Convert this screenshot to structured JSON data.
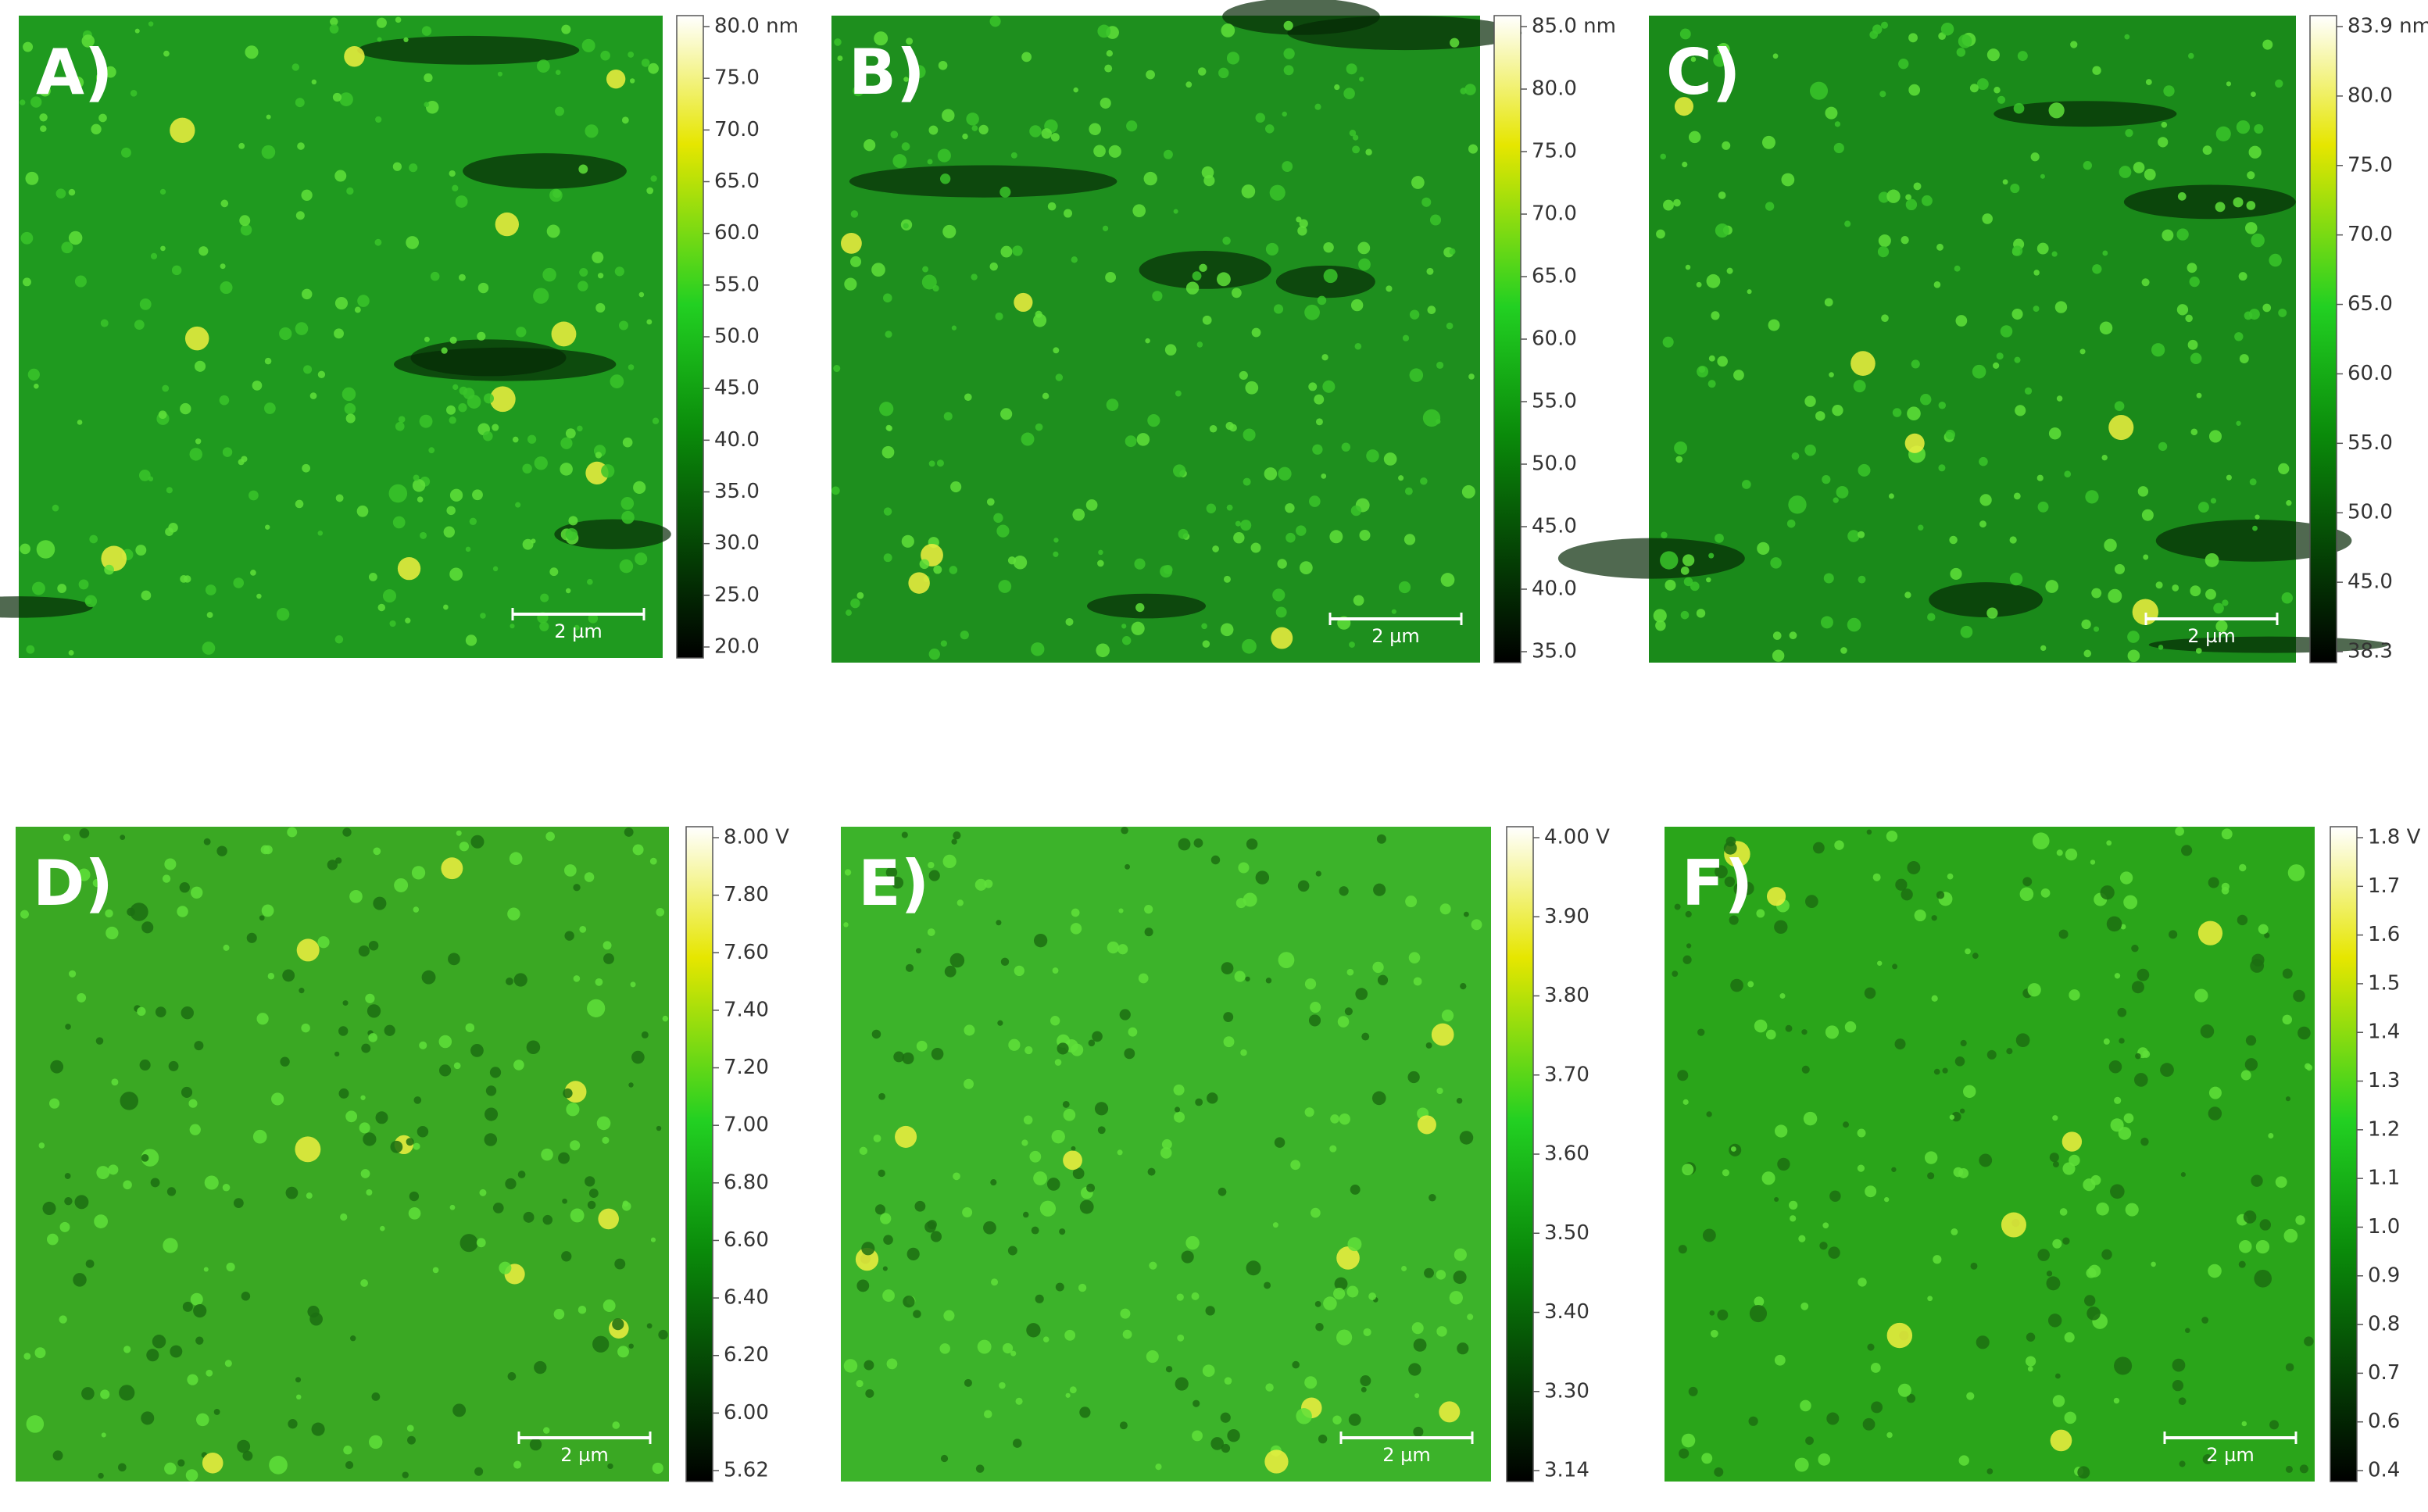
{
  "panels": [
    {
      "label": "A)",
      "scale_bar": "2 µm",
      "colorbar": [
        "80.0 nm",
        "75.0",
        "70.0",
        "65.0",
        "60.0",
        "55.0",
        "50.0",
        "45.0",
        "40.0",
        "35.0",
        "30.0",
        "25.0",
        "20.0"
      ]
    },
    {
      "label": "B)",
      "scale_bar": "2 µm",
      "colorbar": [
        "85.0 nm",
        "80.0",
        "75.0",
        "70.0",
        "65.0",
        "60.0",
        "55.0",
        "50.0",
        "45.0",
        "40.0",
        "35.0"
      ]
    },
    {
      "label": "C)",
      "scale_bar": "2 µm",
      "colorbar": [
        "83.9 nm",
        "80.0",
        "75.0",
        "70.0",
        "65.0",
        "60.0",
        "55.0",
        "50.0",
        "45.0",
        "38.3"
      ]
    },
    {
      "label": "D)",
      "scale_bar": "2 µm",
      "colorbar": [
        "8.00 V",
        "7.80",
        "7.60",
        "7.40",
        "7.20",
        "7.00",
        "6.80",
        "6.60",
        "6.40",
        "6.20",
        "6.00",
        "5.62"
      ]
    },
    {
      "label": "E)",
      "scale_bar": "2 µm",
      "colorbar": [
        "4.00 V",
        "3.90",
        "3.80",
        "3.70",
        "3.60",
        "3.50",
        "3.40",
        "3.30",
        "3.14"
      ]
    },
    {
      "label": "F)",
      "scale_bar": "2 µm",
      "colorbar": [
        "1.8 V",
        "1.7",
        "1.6",
        "1.5",
        "1.4",
        "1.3",
        "1.2",
        "1.1",
        "1.0",
        "0.9",
        "0.8",
        "0.7",
        "0.6",
        "0.4"
      ]
    }
  ]
}
